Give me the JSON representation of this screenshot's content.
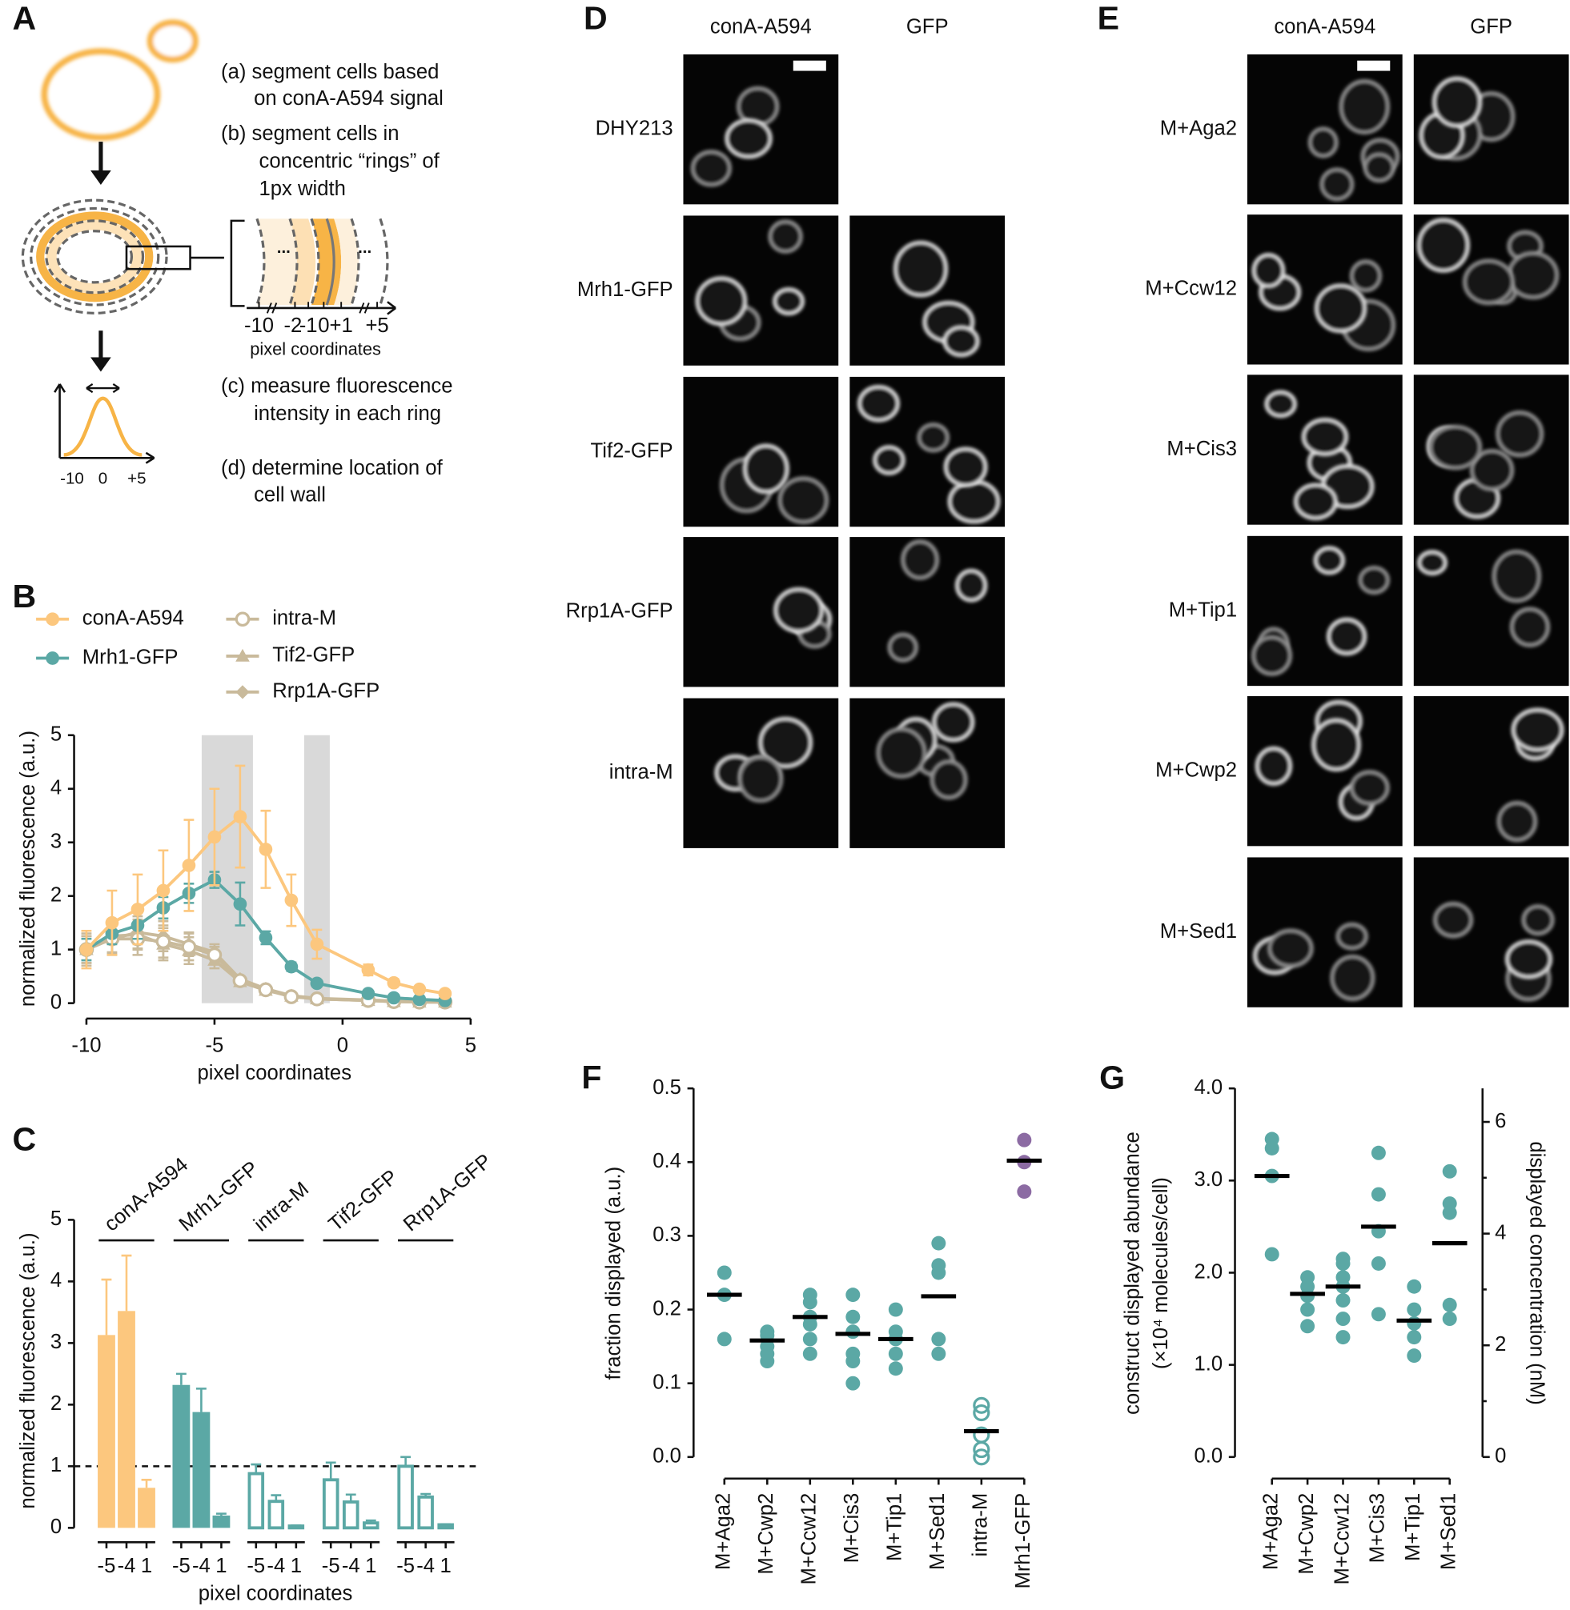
{
  "panel_A": {
    "label": "A",
    "steps": [
      [
        "(a) segment cells based",
        "on conA-A594 signal"
      ],
      [
        "(b) segment cells in",
        "concentric “rings” of",
        "1px width"
      ],
      [
        "(c) measure fluorescence",
        "intensity in each ring"
      ],
      [
        "(d) determine location of",
        "cell wall"
      ]
    ],
    "ring_ticks": [
      "-10",
      "-2",
      "-1",
      "0",
      "+1",
      "+5"
    ],
    "ring_dots": "...",
    "ring_axis_label": "pixel coordinates",
    "plot_ticks": [
      "-10",
      "0",
      "+5"
    ]
  },
  "panel_D": {
    "label": "D",
    "columns": [
      "conA-A594",
      "GFP"
    ],
    "rows": [
      "DHY213",
      "Mrh1-GFP",
      "Tif2-GFP",
      "Rrp1A-GFP",
      "intra-M"
    ]
  },
  "panel_E": {
    "label": "E",
    "columns": [
      "conA-A594",
      "GFP"
    ],
    "rows": [
      "M+Aga2",
      "M+Ccw12",
      "M+Cis3",
      "M+Tip1",
      "M+Cwp2",
      "M+Sed1"
    ]
  },
  "chart_data": [
    {
      "type": "line",
      "label": "B",
      "xlabel": "pixel coordinates",
      "ylabel": "normalized fluorescence (a.u.)",
      "x": [
        -10,
        -9,
        -8,
        -7,
        -6,
        -5,
        -4,
        -3,
        -2,
        -1,
        1,
        2,
        3,
        4
      ],
      "xlim": [
        -10,
        5
      ],
      "xticks": [
        -10,
        -5,
        0,
        5
      ],
      "ylim": [
        0,
        5
      ],
      "yticks": [
        0,
        1,
        2,
        3,
        4,
        5
      ],
      "shaded": [
        [
          -5.5,
          -3.5
        ],
        [
          -1.5,
          -0.5
        ]
      ],
      "shade_color": "#d9d9d9",
      "series": [
        {
          "name": "conA-A594",
          "color": "#fcc77e",
          "marker": "circle",
          "open": false,
          "values": [
            1.0,
            1.5,
            1.75,
            2.1,
            2.57,
            3.1,
            3.48,
            2.87,
            1.92,
            1.1,
            0.62,
            0.38,
            0.26,
            0.18
          ],
          "errors": [
            0.35,
            0.6,
            0.65,
            0.75,
            0.85,
            0.9,
            0.95,
            0.72,
            0.48,
            0.27,
            0.1,
            0.07,
            0.05,
            0.04
          ]
        },
        {
          "name": "Mrh1-GFP",
          "color": "#5ba8a5",
          "marker": "circle",
          "open": false,
          "values": [
            1.0,
            1.3,
            1.45,
            1.78,
            2.05,
            2.3,
            1.85,
            1.22,
            0.68,
            0.37,
            0.18,
            0.1,
            0.07,
            0.05
          ],
          "errors": [
            0.2,
            0.2,
            0.25,
            0.2,
            0.18,
            0.15,
            0.4,
            0.12,
            0.08,
            0.04,
            0.03,
            0.02,
            0.02,
            0.02
          ]
        },
        {
          "name": "intra-M",
          "color": "#c9ba9b",
          "marker": "circle",
          "open": true,
          "values": [
            1.0,
            1.2,
            1.2,
            1.15,
            1.05,
            0.9,
            0.42,
            0.25,
            0.12,
            0.08,
            0.05,
            0.03,
            0.02,
            0.02
          ],
          "errors": [
            0.3,
            0.3,
            0.3,
            0.3,
            0.25,
            0.15,
            0.05,
            0.04,
            0.03,
            0.02,
            0.01,
            0.01,
            0.01,
            0.01
          ]
        },
        {
          "name": "Tif2-GFP",
          "color": "#c9ba9b",
          "marker": "triangle",
          "open": false,
          "values": [
            1.0,
            1.25,
            1.28,
            1.1,
            0.98,
            0.8,
            0.4,
            0.24,
            0.13,
            0.08,
            0.05,
            0.03,
            0.02,
            0.02
          ],
          "errors": [
            0.25,
            0.3,
            0.28,
            0.3,
            0.25,
            0.15,
            0.05,
            0.04,
            0.03,
            0.02,
            0.01,
            0.01,
            0.01,
            0.01
          ]
        },
        {
          "name": "Rrp1A-GFP",
          "color": "#c9ba9b",
          "marker": "diamond",
          "open": false,
          "values": [
            1.0,
            1.2,
            1.32,
            1.25,
            1.1,
            0.95,
            0.45,
            0.27,
            0.14,
            0.09,
            0.06,
            0.04,
            0.03,
            0.03
          ],
          "errors": [
            0.25,
            0.28,
            0.3,
            0.28,
            0.22,
            0.15,
            0.05,
            0.04,
            0.03,
            0.02,
            0.01,
            0.01,
            0.01,
            0.01
          ]
        }
      ]
    },
    {
      "type": "bar",
      "label": "C",
      "xlabel": "pixel coordinates",
      "ylabel": "normalized fluorescence (a.u.)",
      "subcategories": [
        "-5",
        "-4",
        "1"
      ],
      "ylim": [
        0,
        5
      ],
      "yticks": [
        0,
        1,
        2,
        3,
        4,
        5
      ],
      "hline": 1,
      "groups": [
        {
          "name": "conA-A594",
          "color": "#fcc77e",
          "open": false,
          "values": [
            3.13,
            3.52,
            0.65
          ],
          "errors": [
            0.9,
            0.9,
            0.13
          ]
        },
        {
          "name": "Mrh1-GFP",
          "color": "#5ba8a5",
          "open": false,
          "values": [
            2.32,
            1.88,
            0.2
          ],
          "errors": [
            0.18,
            0.38,
            0.03
          ]
        },
        {
          "name": "intra-M",
          "color": "#5ba8a5",
          "open": true,
          "values": [
            0.88,
            0.43,
            0.03
          ],
          "errors": [
            0.15,
            0.1,
            0.01
          ]
        },
        {
          "name": "Tif2-GFP",
          "color": "#5ba8a5",
          "open": true,
          "values": [
            0.78,
            0.42,
            0.08
          ],
          "errors": [
            0.28,
            0.12,
            0.04
          ]
        },
        {
          "name": "Rrp1A-GFP",
          "color": "#5ba8a5",
          "open": true,
          "values": [
            1.0,
            0.5,
            0.05
          ],
          "errors": [
            0.15,
            0.05,
            0.01
          ]
        }
      ]
    },
    {
      "type": "strip",
      "label": "F",
      "ylabel": [
        "fraction displayed (a.u.)"
      ],
      "categories": [
        "M+Aga2",
        "M+Cwp2",
        "M+Ccw12",
        "M+Cis3",
        "M+Tip1",
        "M+Sed1",
        "intra-M",
        "Mrh1-GFP"
      ],
      "colors": [
        "#5ba8a5",
        "#5ba8a5",
        "#5ba8a5",
        "#5ba8a5",
        "#5ba8a5",
        "#5ba8a5",
        "#5ba8a5",
        "#8c6ba3"
      ],
      "open": [
        false,
        false,
        false,
        false,
        false,
        false,
        true,
        false
      ],
      "points": [
        [
          0.25,
          0.22,
          0.16
        ],
        [
          0.17,
          0.165,
          0.15,
          0.14,
          0.13
        ],
        [
          0.22,
          0.21,
          0.19,
          0.18,
          0.16,
          0.14
        ],
        [
          0.22,
          0.19,
          0.17,
          0.14,
          0.13,
          0.1
        ],
        [
          0.2,
          0.17,
          0.16,
          0.14,
          0.12
        ],
        [
          0.29,
          0.26,
          0.25,
          0.16,
          0.14
        ],
        [
          0.07,
          0.06,
          0.03,
          0.01,
          0.0
        ],
        [
          0.43,
          0.4,
          0.36
        ]
      ],
      "means": [
        0.22,
        0.158,
        0.19,
        0.167,
        0.16,
        0.218,
        0.035,
        0.402
      ],
      "ylim": [
        0,
        0.5
      ],
      "yticks": [
        {
          "value": 0,
          "label": "0.0"
        },
        {
          "value": 0.1,
          "label": "0.1"
        },
        {
          "value": 0.2,
          "label": "0.2"
        },
        {
          "value": 0.3,
          "label": "0.3"
        },
        {
          "value": 0.4,
          "label": "0.4"
        },
        {
          "value": 0.5,
          "label": "0.5"
        }
      ]
    },
    {
      "type": "strip",
      "label": "G",
      "ylabel": [
        "construct displayed abundance",
        "(×10⁴ molecules/cell)"
      ],
      "y2label": "displayed concentration (nM)",
      "categories": [
        "M+Aga2",
        "M+Cwp2",
        "M+Ccw12",
        "M+Cis3",
        "M+Tip1",
        "M+Sed1"
      ],
      "colors": [
        "#5ba8a5",
        "#5ba8a5",
        "#5ba8a5",
        "#5ba8a5",
        "#5ba8a5",
        "#5ba8a5"
      ],
      "open": [
        false,
        false,
        false,
        false,
        false,
        false
      ],
      "points": [
        [
          3.45,
          3.35,
          3.05,
          2.2
        ],
        [
          1.95,
          1.85,
          1.75,
          1.6,
          1.42
        ],
        [
          2.15,
          2.1,
          1.95,
          1.85,
          1.7,
          1.5,
          1.3
        ],
        [
          3.3,
          2.85,
          2.45,
          2.1,
          1.55
        ],
        [
          1.85,
          1.6,
          1.45,
          1.3,
          1.1
        ],
        [
          3.1,
          2.75,
          2.65,
          1.65,
          1.5
        ]
      ],
      "means": [
        3.05,
        1.77,
        1.85,
        2.5,
        1.48,
        2.32
      ],
      "ylim": [
        0,
        4
      ],
      "yticks": [
        {
          "value": 0,
          "label": "0.0"
        },
        {
          "value": 1,
          "label": "1.0"
        },
        {
          "value": 2,
          "label": "2.0"
        },
        {
          "value": 3,
          "label": "3.0"
        },
        {
          "value": 4,
          "label": "4.0"
        }
      ],
      "y2lim": [
        0,
        6.6
      ],
      "y2ticks": [
        0,
        2,
        4,
        6
      ],
      "y2minorticks": [
        1,
        3,
        5
      ]
    }
  ]
}
